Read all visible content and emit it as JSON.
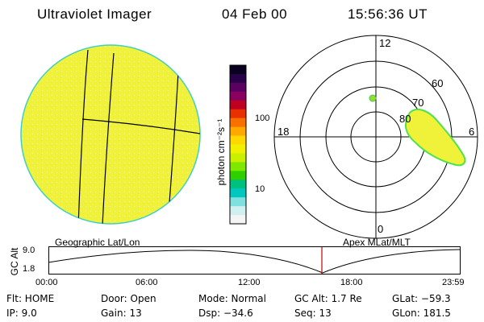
{
  "header": {
    "instrument": "Ultraviolet Imager",
    "date": "04 Feb 00",
    "time": "15:56:36 UT"
  },
  "colorbar": {
    "unit_label": "photon cm⁻²s⁻¹",
    "ticks": [
      "100",
      "10"
    ],
    "colors": [
      "#0a0020",
      "#28004a",
      "#5a0060",
      "#8a0060",
      "#c00020",
      "#e83000",
      "#f87000",
      "#ffa800",
      "#ffd800",
      "#f0f000",
      "#c8f000",
      "#80e800",
      "#30d000",
      "#00c080",
      "#00c8c0",
      "#80e0e0",
      "#d0f0f0",
      "#f4f4f4"
    ]
  },
  "polar": {
    "labels": [
      "12",
      "18",
      "6",
      "0",
      "60",
      "70",
      "80"
    ]
  },
  "timeline": {
    "left_label": "Geographic Lat/Lon",
    "right_label": "Apex MLat/MLT",
    "axis_title": "GC Alt",
    "y_ticks": [
      "9.0",
      "1.8"
    ],
    "x_ticks": [
      "00:00",
      "06:00",
      "12:00",
      "18:00",
      "23:59"
    ],
    "cursor_color": "#c00000"
  },
  "info": {
    "row1": [
      "Flt: HOME",
      "Door: Open",
      "Mode: Normal",
      "GC Alt: 1.7 Re",
      "GLat: −59.3"
    ],
    "row2": [
      "IP:  9.0",
      "Gain: 13",
      "Dsp:  −34.6",
      "Seq: 13",
      "GLon: 181.5"
    ]
  },
  "colors": {
    "disk_fill": "#f0f23a",
    "disk_edge": "#40d0c0",
    "aurora_fill": "#f0f23a",
    "aurora_edge": "#50e050"
  }
}
